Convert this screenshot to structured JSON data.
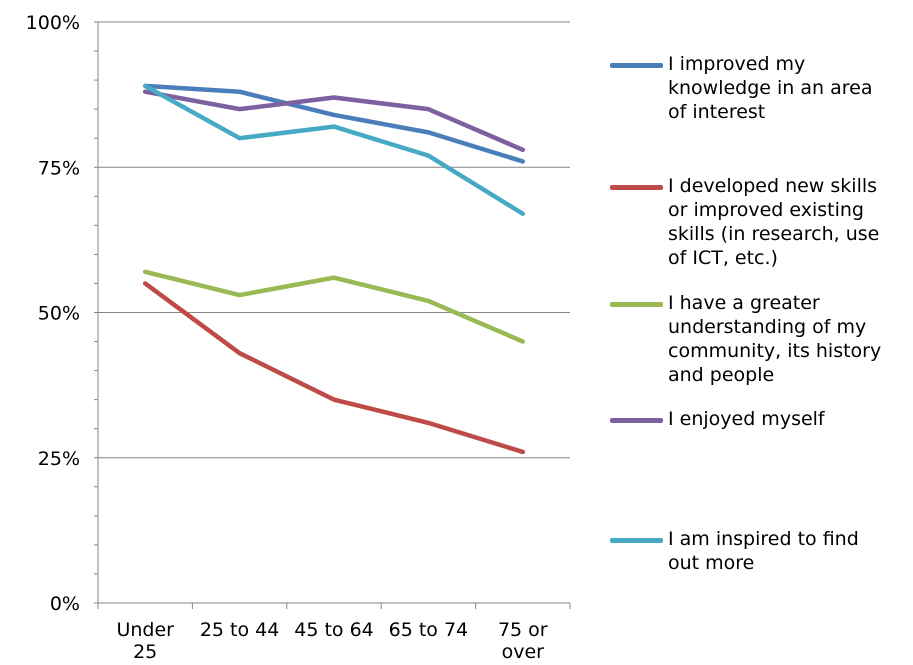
{
  "chart_data": {
    "type": "line",
    "title": "",
    "xlabel": "",
    "ylabel": "",
    "categories": [
      "Under\n25",
      "25 to 44",
      "45 to 64",
      "65 to 74",
      "75 or\nover"
    ],
    "ylim": [
      0,
      1
    ],
    "y_ticks": [
      "0%",
      "25%",
      "50%",
      "75%",
      "100%"
    ],
    "grid": "horizontal",
    "legend_position": "right",
    "series": [
      {
        "name": "I improved my knowledge in an area of interest",
        "color": "#4a7ebb",
        "values": [
          0.89,
          0.88,
          0.84,
          0.81,
          0.76
        ]
      },
      {
        "name": "I developed new skills or improved existing skills (in research, use of ICT, etc.)",
        "color": "#be4b48",
        "values": [
          0.55,
          0.43,
          0.35,
          0.31,
          0.26
        ]
      },
      {
        "name": "I have a greater understanding of my community, its history and people",
        "color": "#98b954",
        "values": [
          0.57,
          0.53,
          0.56,
          0.52,
          0.45
        ]
      },
      {
        "name": "I enjoyed myself",
        "color": "#7d60a0",
        "values": [
          0.88,
          0.85,
          0.87,
          0.85,
          0.78
        ]
      },
      {
        "name": "I am inspired to find out more",
        "color": "#46aac5",
        "values": [
          0.89,
          0.8,
          0.82,
          0.77,
          0.67
        ]
      }
    ]
  }
}
